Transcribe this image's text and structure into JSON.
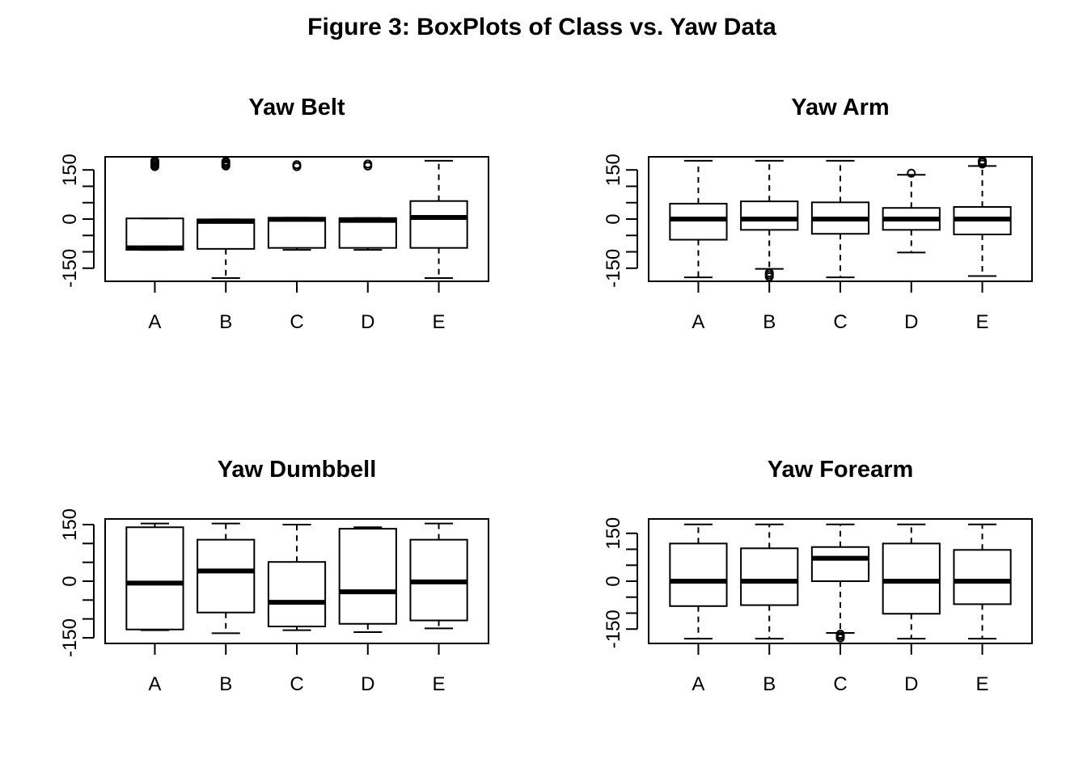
{
  "title": "Figure 3: BoxPlots of Class vs. Yaw Data",
  "chart_data": [
    {
      "type": "box",
      "title": "Yaw Belt",
      "xlabel": "",
      "ylabel": "",
      "categories": [
        "A",
        "B",
        "C",
        "D",
        "E"
      ],
      "yticks": [
        -150,
        0,
        150
      ],
      "ytick_labels": [
        "-150",
        "0",
        "150"
      ],
      "ylim": [
        -190,
        190
      ],
      "boxes": [
        {
          "whisker_low": -94,
          "q1": -94,
          "median": -88,
          "q3": 2,
          "whisker_high": 2,
          "outliers": [
            160,
            165,
            170,
            175,
            178
          ]
        },
        {
          "whisker_low": -180,
          "q1": -91,
          "median": -7,
          "q3": -1,
          "whisker_high": -1,
          "outliers": [
            162,
            167,
            172,
            176
          ]
        },
        {
          "whisker_low": -94,
          "q1": -88,
          "median": -1,
          "q3": 4,
          "whisker_high": 4,
          "outliers": [
            160,
            166
          ]
        },
        {
          "whisker_low": -94,
          "q1": -88,
          "median": -4,
          "q3": 3,
          "whisker_high": 3,
          "outliers": [
            162,
            168
          ]
        },
        {
          "whisker_low": -180,
          "q1": -88,
          "median": 5,
          "q3": 55,
          "whisker_high": 178,
          "outliers": []
        }
      ]
    },
    {
      "type": "box",
      "title": "Yaw Arm",
      "xlabel": "",
      "ylabel": "",
      "categories": [
        "A",
        "B",
        "C",
        "D",
        "E"
      ],
      "yticks": [
        -150,
        0,
        150
      ],
      "ytick_labels": [
        "-150",
        "0",
        "150"
      ],
      "ylim": [
        -190,
        190
      ],
      "boxes": [
        {
          "whisker_low": -178,
          "q1": -63,
          "median": 0,
          "q3": 47,
          "whisker_high": 178,
          "outliers": []
        },
        {
          "whisker_low": -152,
          "q1": -33,
          "median": 0,
          "q3": 54,
          "whisker_high": 178,
          "outliers": [
            -164,
            -170,
            -176
          ]
        },
        {
          "whisker_low": -178,
          "q1": -45,
          "median": 0,
          "q3": 51,
          "whisker_high": 178,
          "outliers": []
        },
        {
          "whisker_low": -102,
          "q1": -33,
          "median": 0,
          "q3": 34,
          "whisker_high": 135,
          "outliers": [
            140
          ]
        },
        {
          "whisker_low": -174,
          "q1": -47,
          "median": 0,
          "q3": 37,
          "whisker_high": 162,
          "outliers": [
            168,
            174,
            178
          ]
        }
      ]
    },
    {
      "type": "box",
      "title": "Yaw Dumbbell",
      "xlabel": "",
      "ylabel": "",
      "categories": [
        "A",
        "B",
        "C",
        "D",
        "E"
      ],
      "yticks": [
        -150,
        0,
        150
      ],
      "ytick_labels": [
        "-150",
        "0",
        "150"
      ],
      "ylim": [
        -165,
        165
      ],
      "boxes": [
        {
          "whisker_low": -130,
          "q1": -128,
          "median": -5,
          "q3": 143,
          "whisker_high": 153,
          "outliers": []
        },
        {
          "whisker_low": -138,
          "q1": -83,
          "median": 27,
          "q3": 110,
          "whisker_high": 153,
          "outliers": []
        },
        {
          "whisker_low": -130,
          "q1": -120,
          "median": -56,
          "q3": 51,
          "whisker_high": 150,
          "outliers": []
        },
        {
          "whisker_low": -135,
          "q1": -113,
          "median": -28,
          "q3": 139,
          "whisker_high": 143,
          "outliers": []
        },
        {
          "whisker_low": -125,
          "q1": -104,
          "median": -2,
          "q3": 110,
          "whisker_high": 153,
          "outliers": []
        }
      ]
    },
    {
      "type": "box",
      "title": "Yaw Forearm",
      "xlabel": "",
      "ylabel": "",
      "categories": [
        "A",
        "B",
        "C",
        "D",
        "E"
      ],
      "yticks": [
        -150,
        0,
        150
      ],
      "ytick_labels": [
        "-150",
        "0",
        "150"
      ],
      "ylim": [
        -195,
        195
      ],
      "boxes": [
        {
          "whisker_low": -180,
          "q1": -78,
          "median": 0,
          "q3": 118,
          "whisker_high": 178,
          "outliers": []
        },
        {
          "whisker_low": -180,
          "q1": -75,
          "median": 0,
          "q3": 103,
          "whisker_high": 178,
          "outliers": []
        },
        {
          "whisker_low": -162,
          "q1": 0,
          "median": 72,
          "q3": 107,
          "whisker_high": 178,
          "outliers": [
            -166,
            -172,
            -178
          ]
        },
        {
          "whisker_low": -180,
          "q1": -102,
          "median": 0,
          "q3": 118,
          "whisker_high": 178,
          "outliers": []
        },
        {
          "whisker_low": -180,
          "q1": -72,
          "median": 0,
          "q3": 98,
          "whisker_high": 178,
          "outliers": []
        }
      ]
    }
  ]
}
